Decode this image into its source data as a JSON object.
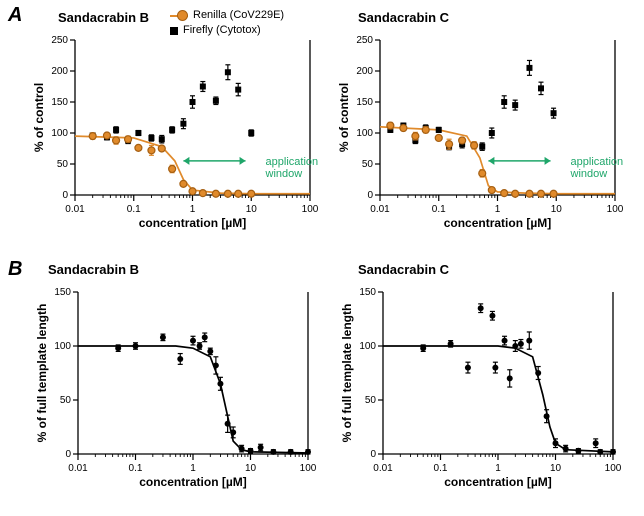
{
  "panelA": {
    "label": "A",
    "legend": {
      "renilla": "Renilla (CoV229E)",
      "firefly": "Firefly (Cytotox)",
      "renilla_color": "#e08a2b",
      "firefly_color": "#000000"
    },
    "common": {
      "xlabel": "concentration [µM]",
      "ylabel": "% of control",
      "xlim": [
        0.01,
        100
      ],
      "xticks": [
        0.01,
        0.1,
        1,
        10,
        100
      ],
      "ylim": [
        0,
        250
      ],
      "yticks": [
        0,
        50,
        100,
        150,
        200,
        250
      ],
      "application_label": "application\nwindow",
      "application_range": [
        0.7,
        8
      ]
    },
    "left": {
      "title": "Sandacrabin B",
      "curve_color": "#e08a2b",
      "curve_points": [
        [
          0.01,
          95
        ],
        [
          0.1,
          92
        ],
        [
          0.3,
          78
        ],
        [
          0.5,
          55
        ],
        [
          0.7,
          25
        ],
        [
          1,
          8
        ],
        [
          3,
          3
        ],
        [
          10,
          2
        ],
        [
          100,
          2
        ]
      ],
      "renilla_points": [
        {
          "x": 0.02,
          "y": 95,
          "e": 5
        },
        {
          "x": 0.035,
          "y": 96,
          "e": 4
        },
        {
          "x": 0.05,
          "y": 88,
          "e": 6
        },
        {
          "x": 0.08,
          "y": 90,
          "e": 5
        },
        {
          "x": 0.12,
          "y": 76,
          "e": 4
        },
        {
          "x": 0.2,
          "y": 72,
          "e": 8
        },
        {
          "x": 0.3,
          "y": 75,
          "e": 4
        },
        {
          "x": 0.45,
          "y": 42,
          "e": 6
        },
        {
          "x": 0.7,
          "y": 18,
          "e": 4
        },
        {
          "x": 1,
          "y": 6,
          "e": 3
        },
        {
          "x": 1.5,
          "y": 3,
          "e": 2
        },
        {
          "x": 2.5,
          "y": 2,
          "e": 2
        },
        {
          "x": 4,
          "y": 2,
          "e": 2
        },
        {
          "x": 6,
          "y": 2,
          "e": 2
        },
        {
          "x": 10,
          "y": 2,
          "e": 2
        }
      ],
      "firefly_points": [
        {
          "x": 0.02,
          "y": 96,
          "e": 4
        },
        {
          "x": 0.035,
          "y": 93,
          "e": 4
        },
        {
          "x": 0.05,
          "y": 105,
          "e": 5
        },
        {
          "x": 0.08,
          "y": 88,
          "e": 5
        },
        {
          "x": 0.12,
          "y": 100,
          "e": 4
        },
        {
          "x": 0.2,
          "y": 92,
          "e": 5
        },
        {
          "x": 0.3,
          "y": 90,
          "e": 6
        },
        {
          "x": 0.45,
          "y": 105,
          "e": 5
        },
        {
          "x": 0.7,
          "y": 115,
          "e": 8
        },
        {
          "x": 1,
          "y": 150,
          "e": 10
        },
        {
          "x": 1.5,
          "y": 175,
          "e": 8
        },
        {
          "x": 2.5,
          "y": 152,
          "e": 6
        },
        {
          "x": 4,
          "y": 198,
          "e": 12
        },
        {
          "x": 6,
          "y": 170,
          "e": 10
        },
        {
          "x": 10,
          "y": 100,
          "e": 5
        }
      ]
    },
    "right": {
      "title": "Sandacrabin C",
      "curve_color": "#e08a2b",
      "curve_points": [
        [
          0.01,
          110
        ],
        [
          0.1,
          105
        ],
        [
          0.3,
          95
        ],
        [
          0.5,
          60
        ],
        [
          0.7,
          15
        ],
        [
          1,
          5
        ],
        [
          3,
          3
        ],
        [
          10,
          2
        ],
        [
          100,
          2
        ]
      ],
      "renilla_points": [
        {
          "x": 0.015,
          "y": 112,
          "e": 5
        },
        {
          "x": 0.025,
          "y": 108,
          "e": 4
        },
        {
          "x": 0.04,
          "y": 95,
          "e": 6
        },
        {
          "x": 0.06,
          "y": 105,
          "e": 5
        },
        {
          "x": 0.1,
          "y": 92,
          "e": 4
        },
        {
          "x": 0.15,
          "y": 82,
          "e": 8
        },
        {
          "x": 0.25,
          "y": 88,
          "e": 4
        },
        {
          "x": 0.4,
          "y": 80,
          "e": 6
        },
        {
          "x": 0.55,
          "y": 35,
          "e": 6
        },
        {
          "x": 0.8,
          "y": 8,
          "e": 3
        },
        {
          "x": 1.3,
          "y": 3,
          "e": 2
        },
        {
          "x": 2,
          "y": 2,
          "e": 2
        },
        {
          "x": 3.5,
          "y": 2,
          "e": 2
        },
        {
          "x": 5.5,
          "y": 2,
          "e": 2
        },
        {
          "x": 9,
          "y": 2,
          "e": 2
        }
      ],
      "firefly_points": [
        {
          "x": 0.015,
          "y": 105,
          "e": 4
        },
        {
          "x": 0.025,
          "y": 112,
          "e": 4
        },
        {
          "x": 0.04,
          "y": 88,
          "e": 5
        },
        {
          "x": 0.06,
          "y": 108,
          "e": 5
        },
        {
          "x": 0.1,
          "y": 105,
          "e": 4
        },
        {
          "x": 0.15,
          "y": 78,
          "e": 5
        },
        {
          "x": 0.25,
          "y": 82,
          "e": 6
        },
        {
          "x": 0.4,
          "y": 80,
          "e": 5
        },
        {
          "x": 0.55,
          "y": 78,
          "e": 6
        },
        {
          "x": 0.8,
          "y": 100,
          "e": 8
        },
        {
          "x": 1.3,
          "y": 150,
          "e": 10
        },
        {
          "x": 2,
          "y": 145,
          "e": 8
        },
        {
          "x": 3.5,
          "y": 205,
          "e": 12
        },
        {
          "x": 5.5,
          "y": 172,
          "e": 10
        },
        {
          "x": 9,
          "y": 132,
          "e": 8
        }
      ]
    }
  },
  "panelB": {
    "label": "B",
    "common": {
      "xlabel": "concentration [µM]",
      "ylabel": "% of full template length",
      "xlim": [
        0.01,
        100
      ],
      "xticks": [
        0.01,
        0.1,
        1,
        10,
        100
      ],
      "ylim": [
        0,
        150
      ],
      "yticks": [
        0,
        50,
        100,
        150
      ]
    },
    "left": {
      "title": "Sandacrabin B",
      "curve_color": "#000000",
      "curve_points": [
        [
          0.01,
          100
        ],
        [
          0.5,
          100
        ],
        [
          1,
          98
        ],
        [
          2,
          90
        ],
        [
          3,
          65
        ],
        [
          4,
          35
        ],
        [
          5,
          12
        ],
        [
          7,
          4
        ],
        [
          10,
          2
        ],
        [
          100,
          1
        ]
      ],
      "points": [
        {
          "x": 0.05,
          "y": 98,
          "e": 3
        },
        {
          "x": 0.1,
          "y": 100,
          "e": 3
        },
        {
          "x": 0.3,
          "y": 108,
          "e": 3
        },
        {
          "x": 0.6,
          "y": 88,
          "e": 5
        },
        {
          "x": 1,
          "y": 105,
          "e": 4
        },
        {
          "x": 1.3,
          "y": 100,
          "e": 3
        },
        {
          "x": 1.6,
          "y": 108,
          "e": 4
        },
        {
          "x": 2,
          "y": 95,
          "e": 3
        },
        {
          "x": 2.5,
          "y": 82,
          "e": 8
        },
        {
          "x": 3,
          "y": 65,
          "e": 6
        },
        {
          "x": 4,
          "y": 28,
          "e": 8
        },
        {
          "x": 5,
          "y": 20,
          "e": 5
        },
        {
          "x": 7,
          "y": 5,
          "e": 3
        },
        {
          "x": 10,
          "y": 3,
          "e": 2
        },
        {
          "x": 15,
          "y": 6,
          "e": 3
        },
        {
          "x": 25,
          "y": 2,
          "e": 2
        },
        {
          "x": 50,
          "y": 2,
          "e": 2
        },
        {
          "x": 100,
          "y": 2,
          "e": 2
        }
      ]
    },
    "right": {
      "title": "Sandacrabin C",
      "curve_color": "#000000",
      "curve_points": [
        [
          0.01,
          100
        ],
        [
          1,
          100
        ],
        [
          2,
          98
        ],
        [
          4,
          90
        ],
        [
          6,
          55
        ],
        [
          8,
          25
        ],
        [
          10,
          10
        ],
        [
          15,
          4
        ],
        [
          100,
          2
        ]
      ],
      "points": [
        {
          "x": 0.05,
          "y": 98,
          "e": 3
        },
        {
          "x": 0.15,
          "y": 102,
          "e": 3
        },
        {
          "x": 0.3,
          "y": 80,
          "e": 5
        },
        {
          "x": 0.5,
          "y": 135,
          "e": 4
        },
        {
          "x": 0.8,
          "y": 128,
          "e": 4
        },
        {
          "x": 0.9,
          "y": 80,
          "e": 5
        },
        {
          "x": 1.3,
          "y": 105,
          "e": 4
        },
        {
          "x": 1.6,
          "y": 70,
          "e": 8
        },
        {
          "x": 2,
          "y": 100,
          "e": 5
        },
        {
          "x": 2.5,
          "y": 102,
          "e": 4
        },
        {
          "x": 3.5,
          "y": 105,
          "e": 8
        },
        {
          "x": 5,
          "y": 75,
          "e": 6
        },
        {
          "x": 7,
          "y": 35,
          "e": 6
        },
        {
          "x": 10,
          "y": 10,
          "e": 4
        },
        {
          "x": 15,
          "y": 5,
          "e": 3
        },
        {
          "x": 25,
          "y": 3,
          "e": 2
        },
        {
          "x": 50,
          "y": 10,
          "e": 4
        },
        {
          "x": 60,
          "y": 2,
          "e": 2
        },
        {
          "x": 100,
          "y": 2,
          "e": 2
        }
      ]
    }
  },
  "style": {
    "background_color": "#ffffff",
    "axis_color": "#000000",
    "label_fontsize": 12,
    "title_fontsize": 13,
    "tick_fontsize": 10,
    "marker_size": 4
  }
}
